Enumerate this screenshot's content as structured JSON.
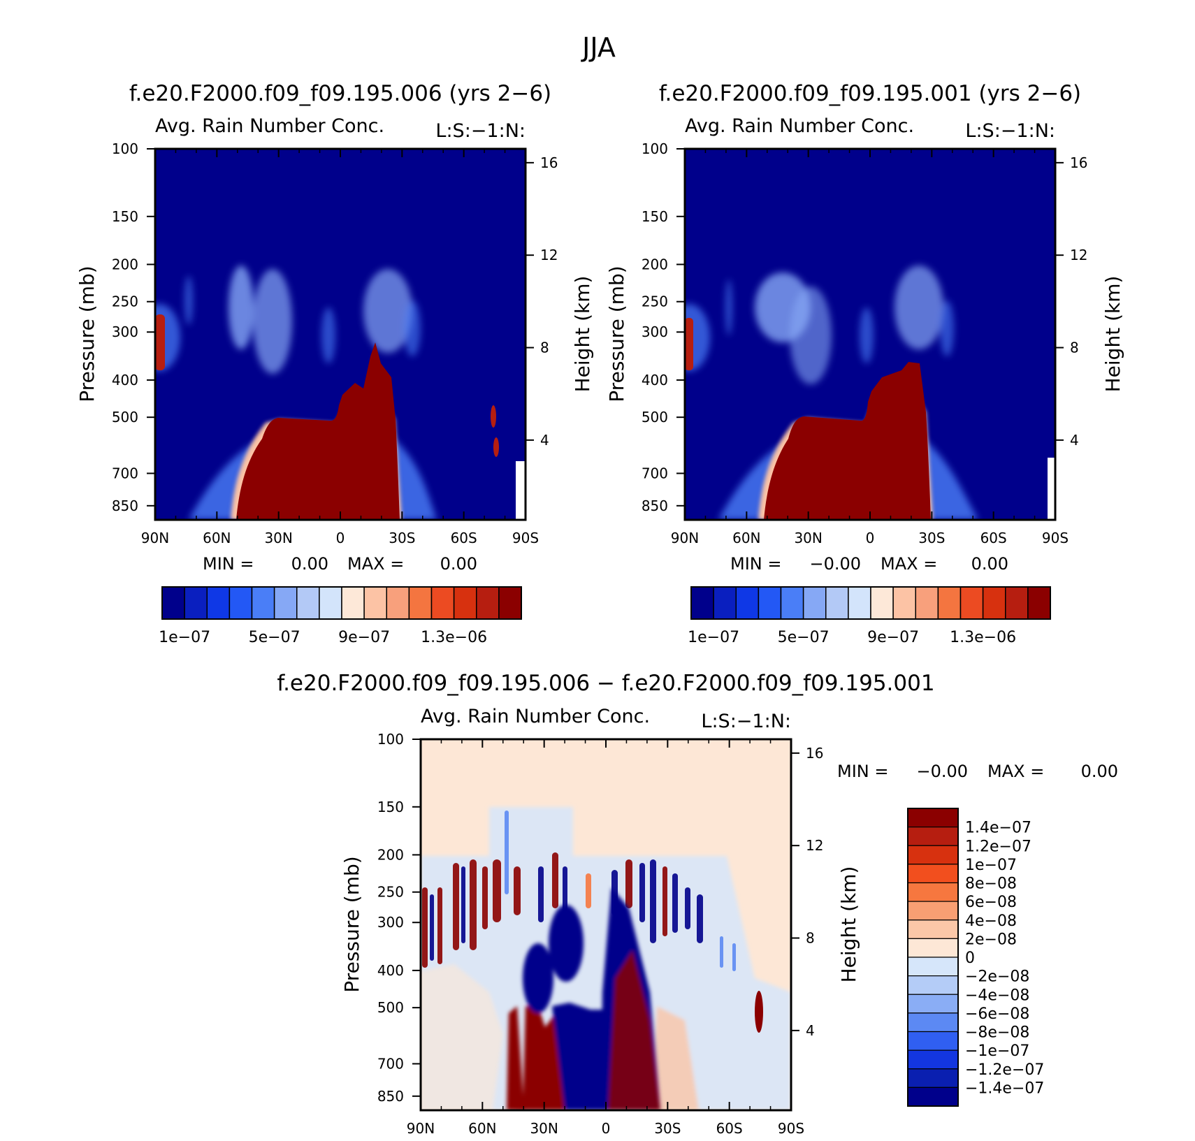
{
  "figure": {
    "main_title": "JJA"
  },
  "colors": {
    "abs": [
      "#00008b",
      "#0a1fbf",
      "#0f38e6",
      "#2358f5",
      "#4a7ef7",
      "#86a8f5",
      "#b3c9f6",
      "#d3e4fb",
      "#fde8d8",
      "#fcc3a5",
      "#f8a07c",
      "#f47540",
      "#ec4b22",
      "#d7310f",
      "#b61e10",
      "#8b0000"
    ],
    "diff": [
      "#8b0000",
      "#b61e10",
      "#d7310f",
      "#f24f1e",
      "#f6773f",
      "#f89f73",
      "#fbc7a8",
      "#fde7d6",
      "#d6e6fa",
      "#b4ccf7",
      "#8aadf5",
      "#5c89f3",
      "#305ff1",
      "#1336e0",
      "#0a1fb0",
      "#00008b"
    ]
  },
  "chart_data": [
    {
      "type": "heatmap",
      "id": "panel-left",
      "title": "f.e20.F2000.f09_f09.195.006 (yrs 2−6)",
      "subtitle_left": "Avg. Rain Number Conc.",
      "subtitle_right": "L:S:−1:N:",
      "ylabel": "Pressure (mb)",
      "ylabel_right": "Height (km)",
      "x_ticks": [
        "90N",
        "60N",
        "30N",
        "0",
        "30S",
        "60S",
        "90S"
      ],
      "y_ticks": [
        "100",
        "150",
        "200",
        "250",
        "300",
        "400",
        "500",
        "700",
        "850"
      ],
      "y_ticks_right": [
        "16",
        "12",
        "8",
        "4"
      ],
      "min_label": "MIN =",
      "min_value": "0.00",
      "max_label": "MAX =",
      "max_value": "0.00",
      "colorbar_labels": [
        "1e−07",
        "5e−07",
        "9e−07",
        "1.3e−06"
      ]
    },
    {
      "type": "heatmap",
      "id": "panel-right",
      "title": "f.e20.F2000.f09_f09.195.001 (yrs 2−6)",
      "subtitle_left": "Avg. Rain Number Conc.",
      "subtitle_right": "L:S:−1:N:",
      "ylabel": "Pressure (mb)",
      "ylabel_right": "Height (km)",
      "x_ticks": [
        "90N",
        "60N",
        "30N",
        "0",
        "30S",
        "60S",
        "90S"
      ],
      "y_ticks": [
        "100",
        "150",
        "200",
        "250",
        "300",
        "400",
        "500",
        "700",
        "850"
      ],
      "y_ticks_right": [
        "16",
        "12",
        "8",
        "4"
      ],
      "min_label": "MIN =",
      "min_value": "−0.00",
      "max_label": "MAX =",
      "max_value": "0.00",
      "colorbar_labels": [
        "1e−07",
        "5e−07",
        "9e−07",
        "1.3e−06"
      ]
    },
    {
      "type": "heatmap",
      "id": "panel-diff",
      "title": "f.e20.F2000.f09_f09.195.006 − f.e20.F2000.f09_f09.195.001",
      "subtitle_left": "Avg. Rain Number Conc.",
      "subtitle_right": "L:S:−1:N:",
      "ylabel": "Pressure (mb)",
      "ylabel_right": "Height (km)",
      "x_ticks": [
        "90N",
        "60N",
        "30N",
        "0",
        "30S",
        "60S",
        "90S"
      ],
      "y_ticks": [
        "100",
        "150",
        "200",
        "250",
        "300",
        "400",
        "500",
        "700",
        "850"
      ],
      "y_ticks_right": [
        "16",
        "12",
        "8",
        "4"
      ],
      "min_label": "MIN =",
      "min_value": "−0.00",
      "max_label": "MAX =",
      "max_value": "0.00",
      "colorbar_labels": [
        "1.4e−07",
        "1.2e−07",
        "1e−07",
        "8e−08",
        "6e−08",
        "4e−08",
        "2e−08",
        "0",
        "−2e−08",
        "−4e−08",
        "−6e−08",
        "−8e−08",
        "−1e−07",
        "−1.2e−07",
        "−1.4e−07"
      ]
    }
  ]
}
